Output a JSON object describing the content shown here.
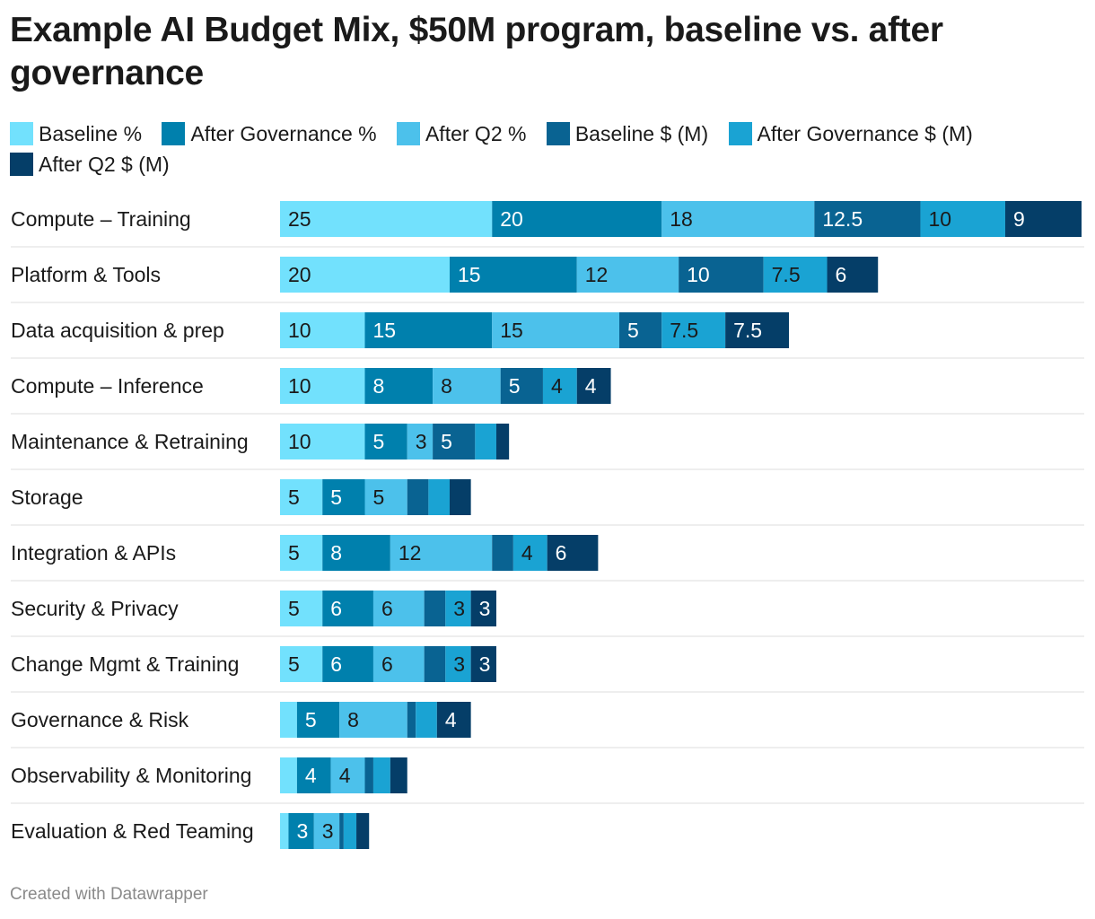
{
  "title": "Example AI Budget Mix, $50M program, baseline vs. after governance",
  "footer": "Created with Datawrapper",
  "colors": [
    "#72e1fd",
    "#0080ad",
    "#4cc1eb",
    "#096392",
    "#1aa3d3",
    "#053e68"
  ],
  "legend": [
    {
      "label": "Baseline %"
    },
    {
      "label": "After Governance %"
    },
    {
      "label": "After Q2 %"
    },
    {
      "label": "Baseline $ (M)"
    },
    {
      "label": "After Governance $ (M)"
    },
    {
      "label": "After Q2 $ (M)"
    }
  ],
  "chart_data": {
    "type": "bar",
    "orientation": "horizontal",
    "stacked": true,
    "title": "Example AI Budget Mix, $50M program, baseline vs. after governance",
    "categories": [
      "Compute – Training",
      "Platform & Tools",
      "Data acquisition & prep",
      "Compute – Inference",
      "Maintenance & Retraining",
      "Storage",
      "Integration & APIs",
      "Security & Privacy",
      "Change Mgmt & Training",
      "Governance & Risk",
      "Observability & Monitoring",
      "Evaluation & Red Teaming"
    ],
    "series": [
      {
        "name": "Baseline %",
        "values": [
          25,
          20,
          10,
          10,
          10,
          5,
          5,
          5,
          5,
          2,
          2,
          1
        ]
      },
      {
        "name": "After Governance %",
        "values": [
          20,
          15,
          15,
          8,
          5,
          5,
          8,
          6,
          6,
          5,
          4,
          3
        ]
      },
      {
        "name": "After Q2 %",
        "values": [
          18,
          12,
          15,
          8,
          3,
          5,
          12,
          6,
          6,
          8,
          4,
          3
        ]
      },
      {
        "name": "Baseline $ (M)",
        "values": [
          12.5,
          10,
          5,
          5,
          5,
          2.5,
          2.5,
          2.5,
          2.5,
          1,
          1,
          0.5
        ]
      },
      {
        "name": "After Governance $ (M)",
        "values": [
          10,
          7.5,
          7.5,
          4,
          2.5,
          2.5,
          4,
          3,
          3,
          2.5,
          2,
          1.5
        ]
      },
      {
        "name": "After Q2 $ (M)",
        "values": [
          9,
          6,
          7.5,
          4,
          1.5,
          2.5,
          6,
          3,
          3,
          4,
          2,
          1.5
        ]
      }
    ],
    "xlim": [
      0,
      100
    ],
    "grid": false,
    "legend_position": "top-left"
  }
}
